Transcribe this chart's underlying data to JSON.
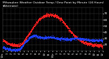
{
  "title": "Milwaukee Weather Outdoor Temp / Dew Point by Minute (24 Hours) (Alternate)",
  "background_color": "#000000",
  "plot_bg_color": "#000000",
  "grid_color": "#444444",
  "temp_color": "#ff2020",
  "dew_color": "#2040ff",
  "ylim": [
    10,
    80
  ],
  "xlim": [
    0,
    1439
  ],
  "yticks": [
    20,
    30,
    40,
    50,
    60,
    70
  ],
  "title_fontsize": 3.2,
  "tick_fontsize": 3.0,
  "num_points": 1440,
  "temp_data": [
    28,
    27,
    27,
    26,
    26,
    25,
    25,
    24,
    24,
    23,
    23,
    23,
    22,
    22,
    22,
    22,
    21,
    21,
    21,
    21,
    20,
    20,
    20,
    20,
    20,
    20,
    20,
    20,
    19,
    19,
    19,
    19,
    19,
    19,
    19,
    19,
    19,
    19,
    19,
    19,
    20,
    20,
    20,
    20,
    21,
    21,
    22,
    22,
    23,
    24,
    25,
    26,
    27,
    28,
    29,
    30,
    31,
    32,
    33,
    34,
    35,
    36,
    37,
    38,
    39,
    40,
    41,
    42,
    43,
    44,
    45,
    46,
    47,
    48,
    49,
    50,
    51,
    52,
    53,
    54,
    55,
    55,
    56,
    57,
    58,
    59,
    60,
    61,
    61,
    62,
    62,
    63,
    63,
    64,
    64,
    65,
    65,
    65,
    66,
    66,
    66,
    67,
    67,
    67,
    67,
    68,
    68,
    68,
    68,
    68,
    68,
    68,
    68,
    68,
    68,
    68,
    68,
    68,
    68,
    68,
    68,
    67,
    67,
    67,
    67,
    67,
    66,
    66,
    66,
    65,
    65,
    65,
    64,
    64,
    63,
    63,
    62,
    62,
    61,
    61,
    60,
    60,
    59,
    58,
    57,
    57,
    56,
    55,
    54,
    53,
    52,
    51,
    50,
    50,
    49,
    48,
    47,
    46,
    45,
    44,
    43,
    42,
    42,
    41,
    40,
    39,
    39,
    38,
    37,
    36,
    36,
    35,
    34,
    34,
    33,
    32,
    32,
    31,
    31,
    30,
    30,
    29,
    29,
    28,
    28,
    27,
    27,
    27,
    26,
    26,
    25,
    25,
    25,
    24,
    24,
    24,
    23,
    23,
    23,
    23,
    22,
    22,
    22,
    22,
    22,
    21,
    21,
    21,
    21,
    21,
    21,
    21,
    20,
    20,
    20,
    20,
    20,
    20,
    20,
    20,
    20,
    20,
    19,
    19,
    19,
    19,
    19,
    19,
    19,
    19,
    19,
    19,
    19,
    19,
    19,
    19,
    18,
    18,
    18,
    18
  ],
  "dew_data": [
    16,
    15,
    15,
    15,
    15,
    14,
    14,
    14,
    14,
    14,
    14,
    14,
    13,
    13,
    13,
    13,
    13,
    13,
    13,
    13,
    12,
    12,
    12,
    12,
    12,
    12,
    12,
    12,
    12,
    12,
    12,
    12,
    12,
    12,
    12,
    12,
    12,
    12,
    13,
    13,
    13,
    14,
    14,
    15,
    16,
    17,
    17,
    18,
    19,
    20,
    21,
    22,
    23,
    24,
    25,
    25,
    26,
    27,
    27,
    27,
    28,
    29,
    30,
    31,
    31,
    32,
    32,
    33,
    33,
    33,
    34,
    34,
    34,
    34,
    35,
    35,
    35,
    35,
    35,
    35,
    35,
    34,
    34,
    34,
    33,
    33,
    33,
    32,
    32,
    32,
    32,
    32,
    32,
    31,
    31,
    31,
    31,
    31,
    31,
    31,
    31,
    32,
    32,
    32,
    32,
    32,
    32,
    32,
    32,
    32,
    32,
    32,
    32,
    32,
    32,
    32,
    32,
    32,
    32,
    32,
    32,
    32,
    32,
    31,
    31,
    31,
    31,
    31,
    30,
    30,
    30,
    30,
    30,
    30,
    30,
    30,
    30,
    30,
    30,
    30,
    30,
    30,
    30,
    29,
    29,
    29,
    29,
    29,
    29,
    29,
    29,
    29,
    29,
    29,
    29,
    29,
    29,
    29,
    29,
    29,
    29,
    29,
    29,
    29,
    29,
    29,
    30,
    30,
    30,
    30,
    30,
    30,
    30,
    30,
    30,
    30,
    30,
    30,
    30,
    30,
    30,
    30,
    30,
    30,
    30,
    30,
    29,
    29,
    29,
    29,
    29,
    29,
    29,
    29,
    29,
    29,
    29,
    28,
    28,
    28,
    28,
    28,
    28,
    28,
    28,
    28,
    28,
    27,
    27,
    27,
    27,
    27,
    27,
    27,
    27,
    27,
    27,
    27,
    27,
    27,
    27,
    27,
    27,
    27,
    27,
    27,
    27,
    27,
    27,
    27,
    27,
    27,
    27,
    27,
    27,
    27,
    27,
    27,
    27,
    27
  ],
  "xtick_positions": [
    0,
    60,
    120,
    180,
    240,
    300,
    360,
    420,
    480,
    540,
    600,
    660,
    720,
    780,
    840,
    900,
    960,
    1020,
    1080,
    1140,
    1200,
    1260,
    1320,
    1380,
    1439
  ],
  "xtick_labels": [
    "12a",
    "1",
    "2",
    "3",
    "4",
    "5",
    "6",
    "7",
    "8",
    "9",
    "10",
    "11",
    "12p",
    "1",
    "2",
    "3",
    "4",
    "5",
    "6",
    "7",
    "8",
    "9",
    "10",
    "11",
    "12"
  ]
}
